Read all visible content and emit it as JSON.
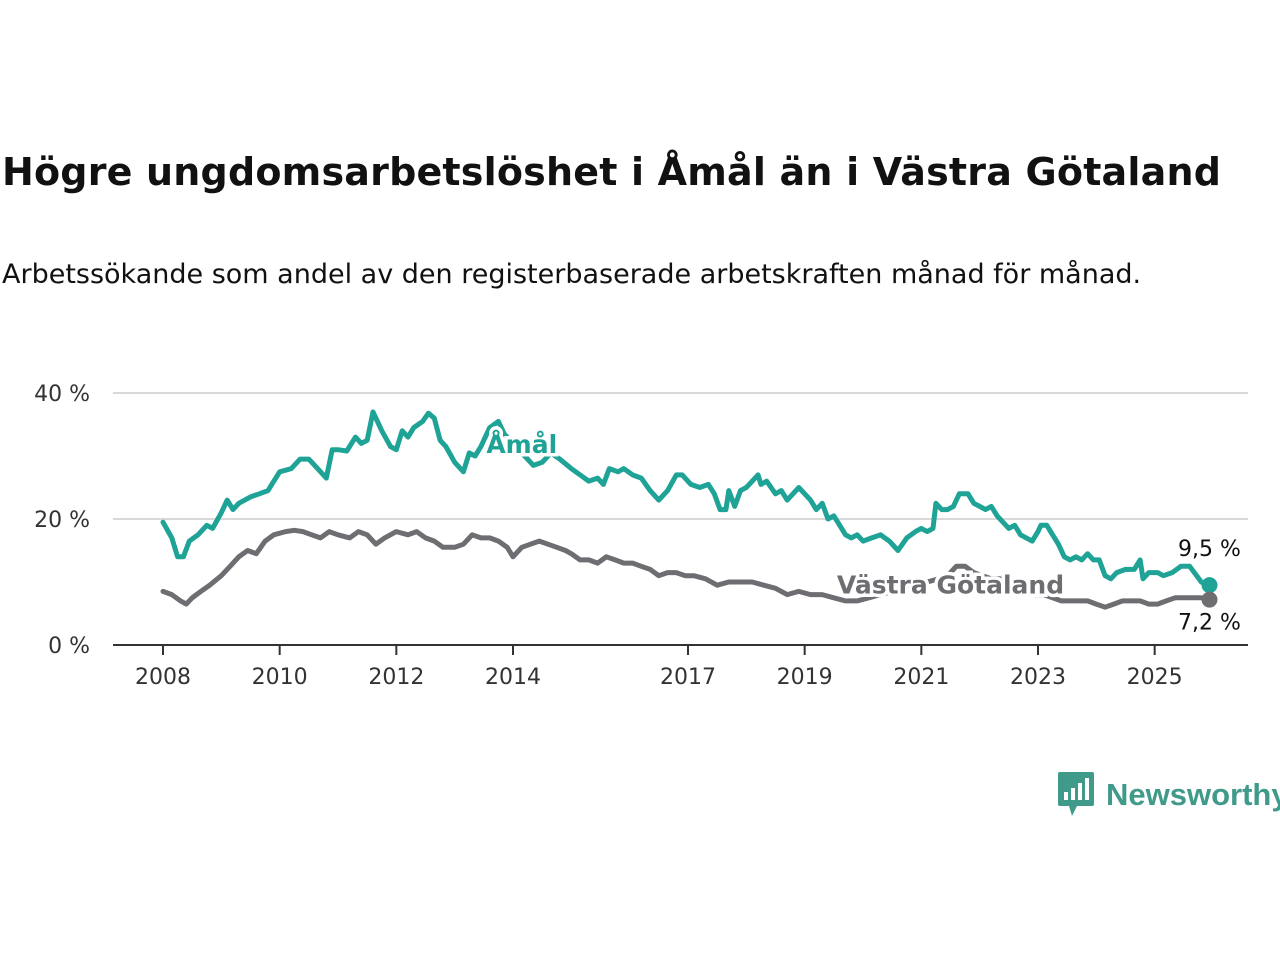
{
  "title": "Högre ungdomsarbetslöshet i Åmål än i Västra Götaland",
  "subtitle": "Arbetssökande som andel av den registerbaserade arbetskraften månad för månad.",
  "brand": {
    "name": "Newsworthy",
    "color": "#3f9a8a",
    "icon": "newsworthy-chart-icon"
  },
  "chart_data": {
    "type": "line",
    "ylim": [
      0,
      40
    ],
    "xlim": [
      2008,
      2025.5
    ],
    "y_ticks": [
      0,
      20,
      40
    ],
    "y_tick_labels": [
      "0 %",
      "20 %",
      "40 %"
    ],
    "x_ticks": [
      2008,
      2010,
      2012,
      2014,
      2017,
      2019,
      2021,
      2023,
      2025
    ],
    "x_tick_labels": [
      "2008",
      "2010",
      "2012",
      "2014",
      "2017",
      "2019",
      "2021",
      "2023",
      "2025"
    ],
    "grid": true,
    "series": [
      {
        "name": "Åmål",
        "color": "#1fa396",
        "end_label": "9,5 %",
        "points": [
          [
            2008.0,
            19.5
          ],
          [
            2008.15,
            17.0
          ],
          [
            2008.25,
            14.0
          ],
          [
            2008.35,
            14.0
          ],
          [
            2008.45,
            16.5
          ],
          [
            2008.6,
            17.5
          ],
          [
            2008.75,
            19.0
          ],
          [
            2008.85,
            18.5
          ],
          [
            2009.0,
            21.0
          ],
          [
            2009.1,
            23.0
          ],
          [
            2009.2,
            21.5
          ],
          [
            2009.3,
            22.5
          ],
          [
            2009.5,
            23.5
          ],
          [
            2009.65,
            24.0
          ],
          [
            2009.8,
            24.5
          ],
          [
            2009.9,
            26.0
          ],
          [
            2010.0,
            27.5
          ],
          [
            2010.2,
            28.0
          ],
          [
            2010.35,
            29.5
          ],
          [
            2010.5,
            29.5
          ],
          [
            2010.65,
            28.0
          ],
          [
            2010.8,
            26.5
          ],
          [
            2010.9,
            31.0
          ],
          [
            2011.0,
            31.0
          ],
          [
            2011.15,
            30.8
          ],
          [
            2011.3,
            33.0
          ],
          [
            2011.4,
            32.0
          ],
          [
            2011.5,
            32.5
          ],
          [
            2011.6,
            37.0
          ],
          [
            2011.75,
            34.0
          ],
          [
            2011.9,
            31.5
          ],
          [
            2012.0,
            31.0
          ],
          [
            2012.1,
            34.0
          ],
          [
            2012.2,
            33.0
          ],
          [
            2012.3,
            34.5
          ],
          [
            2012.45,
            35.5
          ],
          [
            2012.55,
            36.8
          ],
          [
            2012.65,
            36.0
          ],
          [
            2012.75,
            32.5
          ],
          [
            2012.85,
            31.5
          ],
          [
            2013.0,
            29.0
          ],
          [
            2013.15,
            27.5
          ],
          [
            2013.25,
            30.5
          ],
          [
            2013.35,
            30.0
          ],
          [
            2013.45,
            31.5
          ],
          [
            2013.6,
            34.5
          ],
          [
            2013.75,
            35.5
          ],
          [
            2013.85,
            33.5
          ],
          [
            2014.0,
            32.0
          ],
          [
            2014.2,
            30.0
          ],
          [
            2014.35,
            28.5
          ],
          [
            2014.5,
            29.0
          ],
          [
            2014.65,
            30.5
          ],
          [
            2014.8,
            29.5
          ],
          [
            2015.0,
            28.0
          ],
          [
            2015.15,
            27.0
          ],
          [
            2015.3,
            26.0
          ],
          [
            2015.45,
            26.5
          ],
          [
            2015.55,
            25.5
          ],
          [
            2015.65,
            28.0
          ],
          [
            2015.8,
            27.5
          ],
          [
            2015.9,
            28.0
          ],
          [
            2016.05,
            27.0
          ],
          [
            2016.2,
            26.5
          ],
          [
            2016.35,
            24.5
          ],
          [
            2016.5,
            23.0
          ],
          [
            2016.65,
            24.5
          ],
          [
            2016.8,
            27.0
          ],
          [
            2016.9,
            27.0
          ],
          [
            2017.05,
            25.5
          ],
          [
            2017.2,
            25.0
          ],
          [
            2017.35,
            25.5
          ],
          [
            2017.45,
            24.0
          ],
          [
            2017.55,
            21.5
          ],
          [
            2017.65,
            21.5
          ],
          [
            2017.7,
            24.5
          ],
          [
            2017.8,
            22.0
          ],
          [
            2017.9,
            24.5
          ],
          [
            2018.0,
            25.0
          ],
          [
            2018.1,
            26.0
          ],
          [
            2018.2,
            27.0
          ],
          [
            2018.25,
            25.5
          ],
          [
            2018.35,
            26.0
          ],
          [
            2018.5,
            24.0
          ],
          [
            2018.6,
            24.5
          ],
          [
            2018.7,
            23.0
          ],
          [
            2018.8,
            24.0
          ],
          [
            2018.9,
            25.0
          ],
          [
            2019.0,
            24.0
          ],
          [
            2019.1,
            23.0
          ],
          [
            2019.2,
            21.5
          ],
          [
            2019.3,
            22.5
          ],
          [
            2019.4,
            20.0
          ],
          [
            2019.5,
            20.5
          ],
          [
            2019.6,
            19.0
          ],
          [
            2019.7,
            17.5
          ],
          [
            2019.8,
            17.0
          ],
          [
            2019.9,
            17.5
          ],
          [
            2020.0,
            16.5
          ],
          [
            2020.15,
            17.0
          ],
          [
            2020.3,
            17.5
          ],
          [
            2020.45,
            16.5
          ],
          [
            2020.6,
            15.0
          ],
          [
            2020.75,
            17.0
          ],
          [
            2020.9,
            18.0
          ],
          [
            2021.0,
            18.5
          ],
          [
            2021.1,
            18.0
          ],
          [
            2021.2,
            18.5
          ],
          [
            2021.25,
            22.5
          ],
          [
            2021.35,
            21.5
          ],
          [
            2021.45,
            21.5
          ],
          [
            2021.55,
            22.0
          ],
          [
            2021.65,
            24.0
          ],
          [
            2021.8,
            24.0
          ],
          [
            2021.9,
            22.5
          ],
          [
            2022.0,
            22.0
          ],
          [
            2022.1,
            21.5
          ],
          [
            2022.2,
            22.0
          ],
          [
            2022.3,
            20.5
          ],
          [
            2022.4,
            19.5
          ],
          [
            2022.5,
            18.5
          ],
          [
            2022.6,
            19.0
          ],
          [
            2022.7,
            17.5
          ],
          [
            2022.8,
            17.0
          ],
          [
            2022.9,
            16.5
          ],
          [
            2023.0,
            18.0
          ],
          [
            2023.05,
            19.0
          ],
          [
            2023.15,
            19.0
          ],
          [
            2023.25,
            17.5
          ],
          [
            2023.35,
            16.0
          ],
          [
            2023.45,
            14.0
          ],
          [
            2023.55,
            13.5
          ],
          [
            2023.65,
            14.0
          ],
          [
            2023.75,
            13.5
          ],
          [
            2023.85,
            14.5
          ],
          [
            2023.95,
            13.5
          ],
          [
            2024.05,
            13.5
          ],
          [
            2024.15,
            11.0
          ],
          [
            2024.25,
            10.5
          ],
          [
            2024.35,
            11.5
          ],
          [
            2024.5,
            12.0
          ],
          [
            2024.65,
            12.0
          ],
          [
            2024.75,
            13.5
          ],
          [
            2024.8,
            10.5
          ],
          [
            2024.9,
            11.5
          ],
          [
            2025.05,
            11.5
          ],
          [
            2025.15,
            11.0
          ],
          [
            2025.3,
            11.5
          ],
          [
            2025.45,
            12.5
          ],
          [
            2025.6,
            12.5
          ],
          [
            2025.8,
            10.0
          ],
          [
            2025.94,
            9.5
          ]
        ]
      },
      {
        "name": "Västra Götaland",
        "color": "#6e6d72",
        "end_label": "7,2 %",
        "points": [
          [
            2008.0,
            8.5
          ],
          [
            2008.15,
            8.0
          ],
          [
            2008.3,
            7.0
          ],
          [
            2008.4,
            6.5
          ],
          [
            2008.5,
            7.5
          ],
          [
            2008.65,
            8.5
          ],
          [
            2008.8,
            9.5
          ],
          [
            2009.0,
            11.0
          ],
          [
            2009.15,
            12.5
          ],
          [
            2009.3,
            14.0
          ],
          [
            2009.45,
            15.0
          ],
          [
            2009.6,
            14.5
          ],
          [
            2009.75,
            16.5
          ],
          [
            2009.9,
            17.5
          ],
          [
            2010.1,
            18.0
          ],
          [
            2010.25,
            18.2
          ],
          [
            2010.4,
            18.0
          ],
          [
            2010.55,
            17.5
          ],
          [
            2010.7,
            17.0
          ],
          [
            2010.85,
            18.0
          ],
          [
            2011.0,
            17.5
          ],
          [
            2011.2,
            17.0
          ],
          [
            2011.35,
            18.0
          ],
          [
            2011.5,
            17.5
          ],
          [
            2011.65,
            16.0
          ],
          [
            2011.8,
            17.0
          ],
          [
            2012.0,
            18.0
          ],
          [
            2012.2,
            17.5
          ],
          [
            2012.35,
            18.0
          ],
          [
            2012.5,
            17.0
          ],
          [
            2012.65,
            16.5
          ],
          [
            2012.8,
            15.5
          ],
          [
            2013.0,
            15.5
          ],
          [
            2013.15,
            16.0
          ],
          [
            2013.3,
            17.5
          ],
          [
            2013.45,
            17.0
          ],
          [
            2013.6,
            17.0
          ],
          [
            2013.75,
            16.5
          ],
          [
            2013.9,
            15.5
          ],
          [
            2014.0,
            14.0
          ],
          [
            2014.15,
            15.5
          ],
          [
            2014.3,
            16.0
          ],
          [
            2014.45,
            16.5
          ],
          [
            2014.6,
            16.0
          ],
          [
            2014.75,
            15.5
          ],
          [
            2014.9,
            15.0
          ],
          [
            2015.0,
            14.5
          ],
          [
            2015.15,
            13.5
          ],
          [
            2015.3,
            13.5
          ],
          [
            2015.45,
            13.0
          ],
          [
            2015.6,
            14.0
          ],
          [
            2015.75,
            13.5
          ],
          [
            2015.9,
            13.0
          ],
          [
            2016.05,
            13.0
          ],
          [
            2016.2,
            12.5
          ],
          [
            2016.35,
            12.0
          ],
          [
            2016.5,
            11.0
          ],
          [
            2016.65,
            11.5
          ],
          [
            2016.8,
            11.5
          ],
          [
            2016.95,
            11.0
          ],
          [
            2017.1,
            11.0
          ],
          [
            2017.3,
            10.5
          ],
          [
            2017.5,
            9.5
          ],
          [
            2017.7,
            10.0
          ],
          [
            2017.9,
            10.0
          ],
          [
            2018.1,
            10.0
          ],
          [
            2018.3,
            9.5
          ],
          [
            2018.5,
            9.0
          ],
          [
            2018.7,
            8.0
          ],
          [
            2018.9,
            8.5
          ],
          [
            2019.1,
            8.0
          ],
          [
            2019.3,
            8.0
          ],
          [
            2019.5,
            7.5
          ],
          [
            2019.7,
            7.0
          ],
          [
            2019.9,
            7.0
          ],
          [
            2020.1,
            7.5
          ],
          [
            2020.3,
            8.0
          ],
          [
            2020.5,
            8.5
          ],
          [
            2020.7,
            9.0
          ],
          [
            2020.9,
            9.5
          ],
          [
            2021.1,
            10.0
          ],
          [
            2021.3,
            10.5
          ],
          [
            2021.45,
            11.0
          ],
          [
            2021.6,
            12.5
          ],
          [
            2021.75,
            12.5
          ],
          [
            2021.9,
            11.5
          ],
          [
            2022.05,
            11.0
          ],
          [
            2022.2,
            10.5
          ],
          [
            2022.35,
            10.5
          ],
          [
            2022.5,
            10.0
          ],
          [
            2022.65,
            9.0
          ],
          [
            2022.8,
            8.5
          ],
          [
            2022.95,
            8.0
          ],
          [
            2023.1,
            8.0
          ],
          [
            2023.25,
            7.5
          ],
          [
            2023.4,
            7.0
          ],
          [
            2023.55,
            7.0
          ],
          [
            2023.7,
            7.0
          ],
          [
            2023.85,
            7.0
          ],
          [
            2024.0,
            6.5
          ],
          [
            2024.15,
            6.0
          ],
          [
            2024.3,
            6.5
          ],
          [
            2024.45,
            7.0
          ],
          [
            2024.6,
            7.0
          ],
          [
            2024.75,
            7.0
          ],
          [
            2024.9,
            6.5
          ],
          [
            2025.05,
            6.5
          ],
          [
            2025.2,
            7.0
          ],
          [
            2025.35,
            7.5
          ],
          [
            2025.5,
            7.5
          ],
          [
            2025.65,
            7.5
          ],
          [
            2025.8,
            7.5
          ],
          [
            2025.94,
            7.2
          ]
        ]
      }
    ]
  }
}
